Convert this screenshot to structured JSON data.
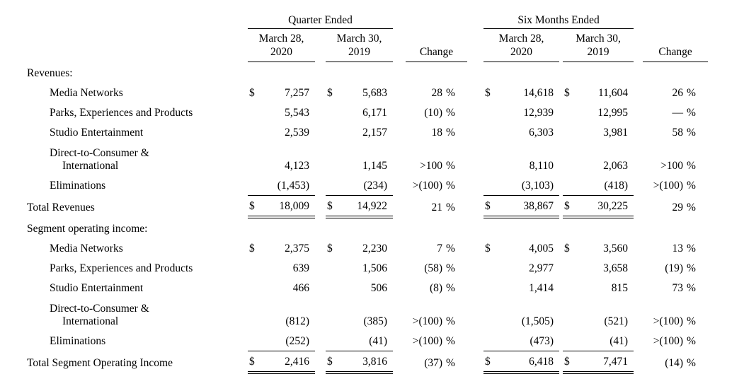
{
  "table": {
    "group_headers": [
      "Quarter Ended",
      "Six Months Ended"
    ],
    "date_headers": [
      {
        "line1": "March 28,",
        "line2": "2020"
      },
      {
        "line1": "March 30,",
        "line2": "2019"
      },
      {
        "line1": "March 28,",
        "line2": "2020"
      },
      {
        "line1": "March 30,",
        "line2": "2019"
      }
    ],
    "change_label": "Change",
    "percent_sign": "%",
    "rows": [
      {
        "type": "section",
        "label": "Revenues:"
      },
      {
        "type": "item",
        "label": "Media Networks",
        "d1": "$",
        "v1": "7,257",
        "d2": "$",
        "v2": "5,683",
        "c1": "28",
        "d3": "$",
        "v3": "14,618",
        "d4": "$",
        "v4": "11,604",
        "c2": "26"
      },
      {
        "type": "item",
        "label": "Parks, Experiences and Products",
        "v1": "5,543",
        "v2": "6,171",
        "c1": "(10)",
        "v3": "12,939",
        "v4": "12,995",
        "c2": "—"
      },
      {
        "type": "item",
        "label": "Studio Entertainment",
        "v1": "2,539",
        "v2": "2,157",
        "c1": "18",
        "v3": "6,303",
        "v4": "3,981",
        "c2": "58"
      },
      {
        "type": "item2",
        "label": "Direct-to-Consumer &",
        "label2": "International",
        "v1": "4,123",
        "v2": "1,145",
        "c1": ">100",
        "v3": "8,110",
        "v4": "2,063",
        "c2": ">100"
      },
      {
        "type": "item",
        "rule": true,
        "label": "Eliminations",
        "v1": "(1,453)",
        "v2": "(234)",
        "c1": ">(100)",
        "v3": "(3,103)",
        "v4": "(418)",
        "c2": ">(100)"
      },
      {
        "type": "total",
        "label": "Total Revenues",
        "d1": "$",
        "v1": "18,009",
        "d2": "$",
        "v2": "14,922",
        "c1": "21",
        "d3": "$",
        "v3": "38,867",
        "d4": "$",
        "v4": "30,225",
        "c2": "29"
      },
      {
        "type": "section",
        "label": "Segment operating income:"
      },
      {
        "type": "item",
        "label": "Media Networks",
        "d1": "$",
        "v1": "2,375",
        "d2": "$",
        "v2": "2,230",
        "c1": "7",
        "d3": "$",
        "v3": "4,005",
        "d4": "$",
        "v4": "3,560",
        "c2": "13"
      },
      {
        "type": "item",
        "label": "Parks, Experiences and Products",
        "v1": "639",
        "v2": "1,506",
        "c1": "(58)",
        "v3": "2,977",
        "v4": "3,658",
        "c2": "(19)"
      },
      {
        "type": "item",
        "label": "Studio Entertainment",
        "v1": "466",
        "v2": "506",
        "c1": "(8)",
        "v3": "1,414",
        "v4": "815",
        "c2": "73"
      },
      {
        "type": "item2",
        "label": "Direct-to-Consumer &",
        "label2": "International",
        "v1": "(812)",
        "v2": "(385)",
        "c1": ">(100)",
        "v3": "(1,505)",
        "v4": "(521)",
        "c2": ">(100)"
      },
      {
        "type": "item",
        "rule": true,
        "label": "Eliminations",
        "v1": "(252)",
        "v2": "(41)",
        "c1": ">(100)",
        "v3": "(473)",
        "v4": "(41)",
        "c2": ">(100)"
      },
      {
        "type": "total",
        "label": "Total Segment Operating Income",
        "d1": "$",
        "v1": "2,416",
        "d2": "$",
        "v2": "3,816",
        "c1": "(37)",
        "d3": "$",
        "v3": "6,418",
        "d4": "$",
        "v4": "7,471",
        "c2": "(14)"
      }
    ]
  }
}
